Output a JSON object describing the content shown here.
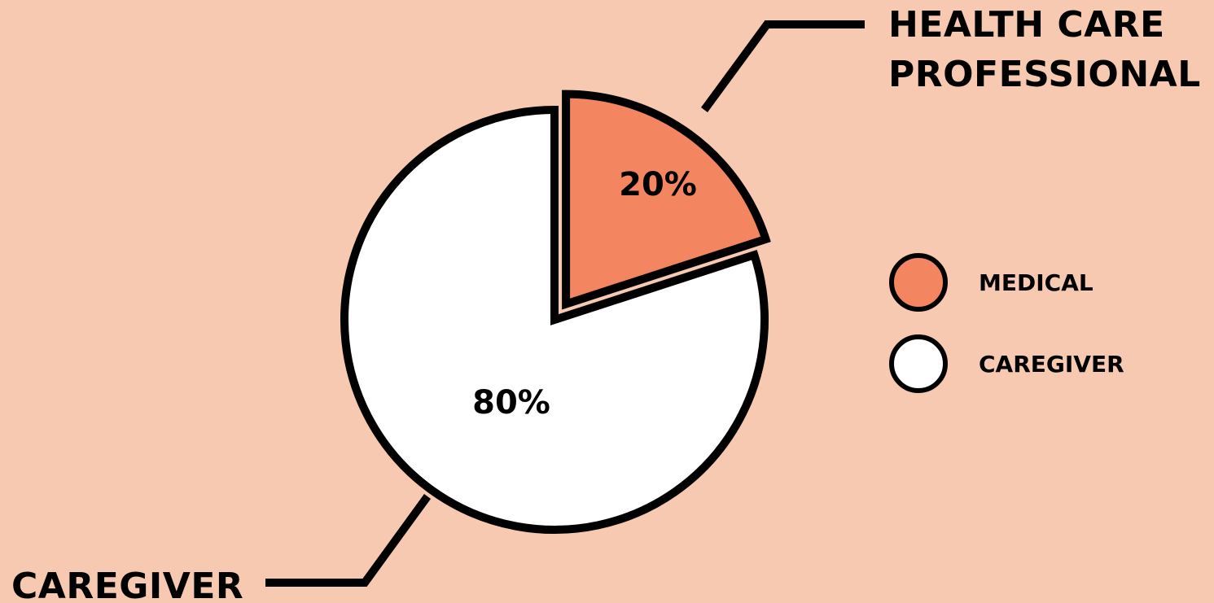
{
  "chart_data": {
    "type": "pie",
    "title": "",
    "slices": [
      {
        "key": "medical",
        "value": 20,
        "percent_label": "20%",
        "legend_label": "MEDICAL",
        "callout_lines": [
          "HEALTH CARE",
          "PROFESSIONAL"
        ],
        "color": "#F38660",
        "exploded": true
      },
      {
        "key": "caregiver",
        "value": 80,
        "percent_label": "80%",
        "legend_label": "CAREGIVER",
        "callout_lines": [
          "CAREGIVER"
        ],
        "color": "#FFFFFF",
        "exploded": false
      }
    ],
    "legend": {
      "position": "right",
      "items": [
        {
          "label": "MEDICAL",
          "color": "#F38660"
        },
        {
          "label": "CAREGIVER",
          "color": "#FFFFFF"
        }
      ]
    }
  },
  "colors": {
    "background": "#F7C9B0",
    "outline": "#000000"
  }
}
